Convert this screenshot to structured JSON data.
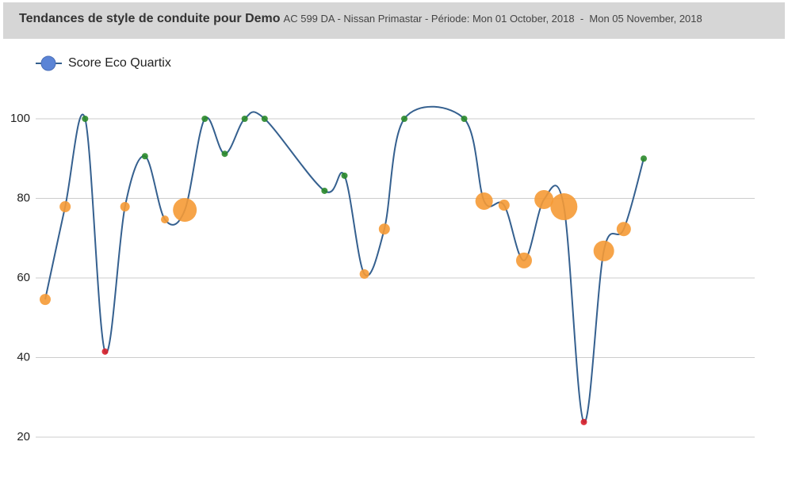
{
  "header": {
    "title": "Tendances de style de conduite pour Demo",
    "subtitle": "AC 599 DA - Nissan Primastar - Période: Mon 01 October, 2018  -  Mon 05 November, 2018"
  },
  "chart_data": {
    "type": "bubble-line",
    "series": [
      {
        "name": "Score Eco Quartix",
        "color": "#35608f",
        "x": [
          0,
          1,
          2,
          3,
          4,
          5,
          6,
          7,
          8,
          9,
          10,
          11,
          14,
          15,
          16,
          17,
          18,
          21,
          22,
          23,
          24,
          25,
          26,
          27,
          28,
          29,
          30
        ],
        "values": [
          54.6,
          77.9,
          100,
          41.5,
          77.9,
          90.6,
          74.7,
          77.1,
          100,
          91.2,
          100,
          100,
          81.9,
          85.7,
          61,
          72.3,
          100,
          100,
          79.3,
          78.3,
          64.4,
          79.7,
          77.9,
          23.8,
          66.8,
          72.3,
          90
        ],
        "sizes": [
          7,
          7,
          4,
          4,
          6,
          4,
          5,
          15,
          4,
          4,
          4,
          4,
          4,
          4,
          6,
          7,
          4,
          4,
          11,
          7,
          10,
          12,
          17,
          4,
          13,
          9,
          4
        ],
        "colors": [
          "#f59a35",
          "#f59a35",
          "#2a8a2a",
          "#d8202a",
          "#f59a35",
          "#2a8a2a",
          "#f59a35",
          "#f59a35",
          "#2a8a2a",
          "#2a8a2a",
          "#2a8a2a",
          "#2a8a2a",
          "#2a8a2a",
          "#2a8a2a",
          "#f59a35",
          "#f59a35",
          "#2a8a2a",
          "#2a8a2a",
          "#f59a35",
          "#f59a35",
          "#f59a35",
          "#f59a35",
          "#f59a35",
          "#d8202a",
          "#f59a35",
          "#f59a35",
          "#2a8a2a"
        ]
      }
    ],
    "xlim": [
      0,
      30
    ],
    "ylim": [
      20,
      100
    ],
    "yticks": [
      20,
      40,
      60,
      80,
      100
    ],
    "grid": true,
    "legend": "top-left"
  }
}
